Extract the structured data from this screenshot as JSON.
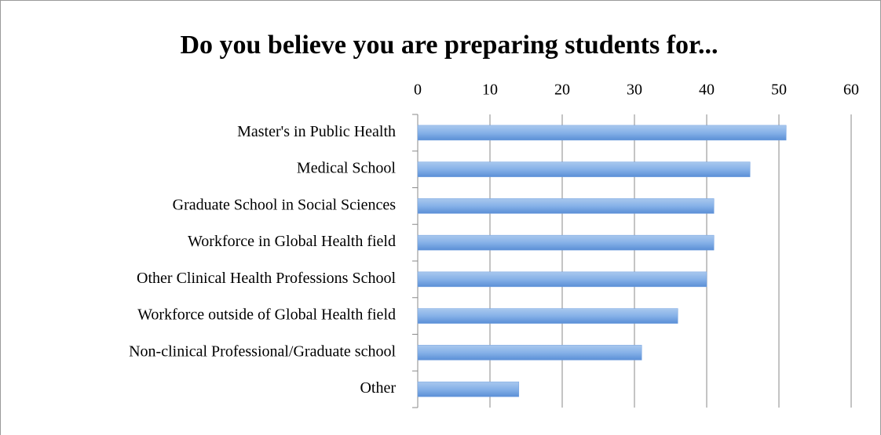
{
  "chart_data": {
    "type": "bar",
    "orientation": "horizontal",
    "title": "Do you believe you are preparing students for...",
    "categories": [
      "Master's in Public Health",
      "Medical School",
      "Graduate School in Social Sciences",
      "Workforce in Global Health field",
      "Other Clinical Health Professions School",
      "Workforce outside of Global Health field",
      "Non-clinical Professional/Graduate school",
      "Other"
    ],
    "values": [
      51,
      46,
      41,
      41,
      40,
      36,
      31,
      14
    ],
    "color": "#6f9fdf",
    "xlim": [
      0,
      60
    ],
    "xticks": [
      0,
      10,
      20,
      30,
      40,
      50,
      60
    ],
    "grid": true
  }
}
